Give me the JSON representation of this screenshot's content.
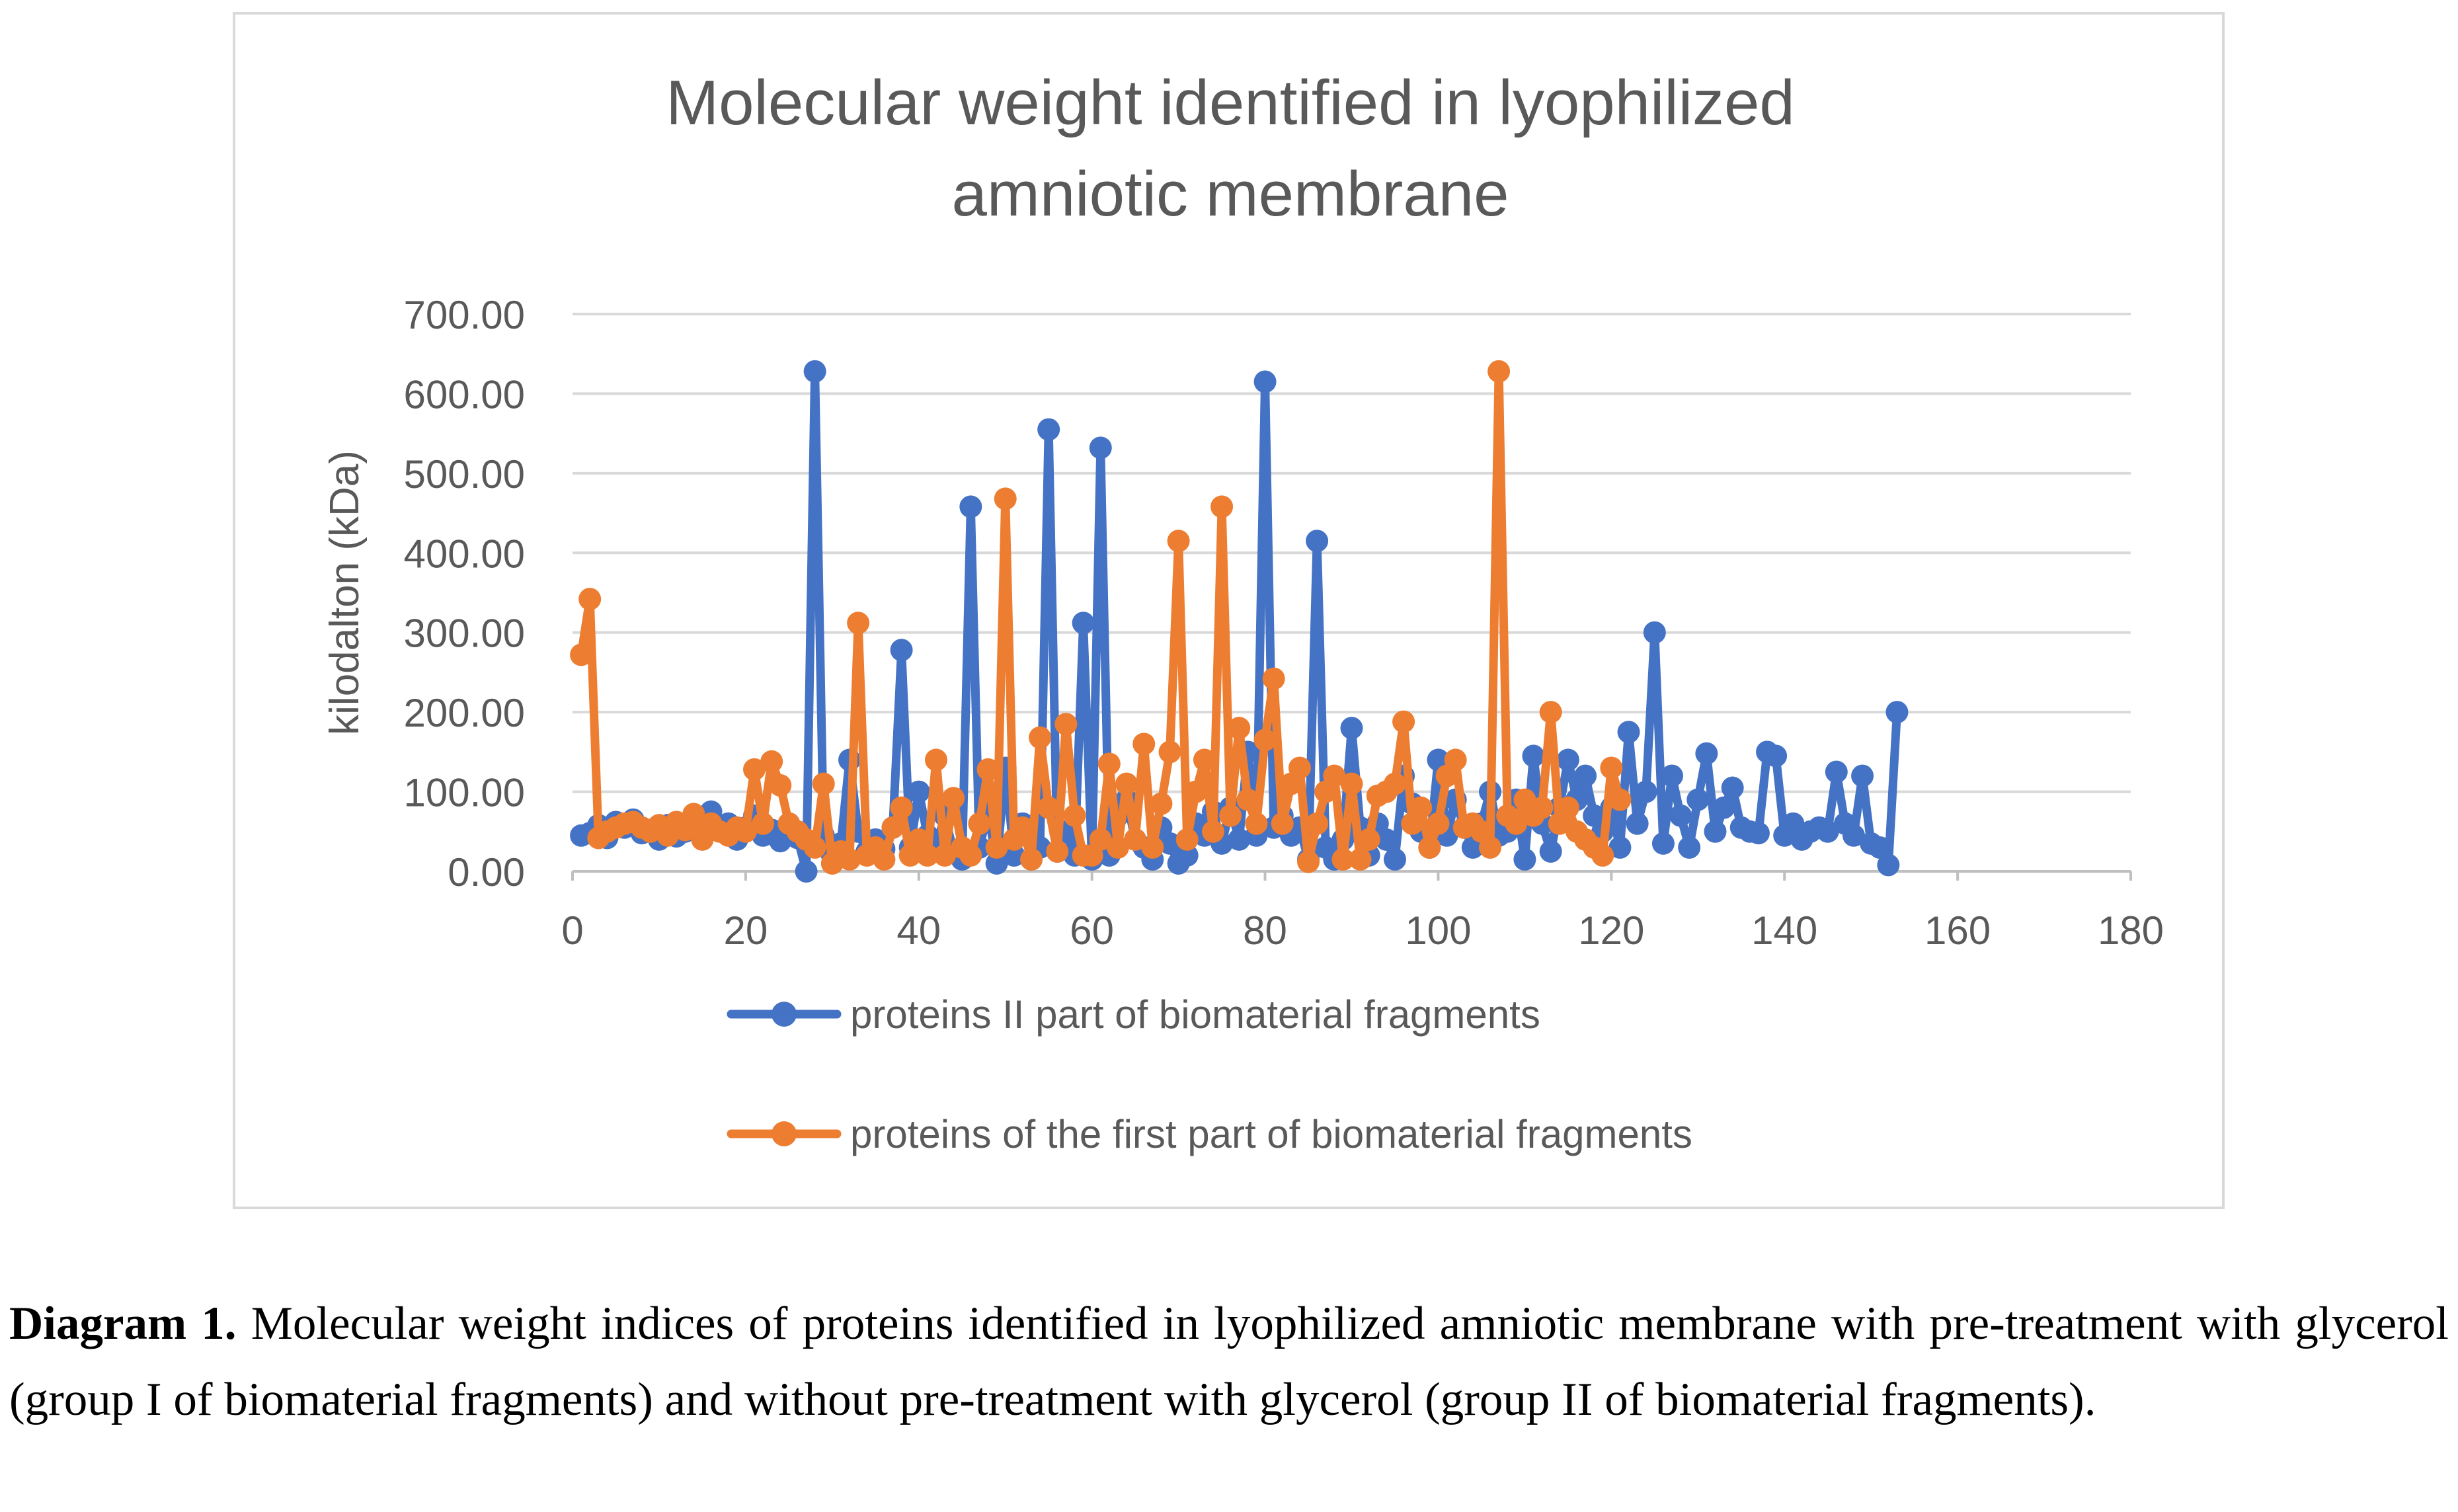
{
  "chart_data": {
    "type": "line",
    "title": "Molecular weight identified in lyophilized amniotic membrane",
    "title_lines": [
      "Molecular weight identified in lyophilized",
      "amniotic membrane"
    ],
    "xlabel": "",
    "ylabel": "kilodalton (kDa)",
    "xlim": [
      0,
      180
    ],
    "ylim": [
      0,
      700
    ],
    "x_ticks": [
      0,
      20,
      40,
      60,
      80,
      100,
      120,
      140,
      160,
      180
    ],
    "x_tick_labels": [
      "0",
      "20",
      "40",
      "60",
      "80",
      "100",
      "120",
      "140",
      "160",
      "180"
    ],
    "y_ticks": [
      0,
      100,
      200,
      300,
      400,
      500,
      600,
      700
    ],
    "y_tick_labels": [
      "0.00",
      "100.00",
      "200.00",
      "300.00",
      "400.00",
      "500.00",
      "600.00",
      "700.00"
    ],
    "grid": true,
    "legend_position": "bottom",
    "series": [
      {
        "name": "proteins II part of biomaterial fragments",
        "color": "#4472c4",
        "values": [
          [
            1,
            45
          ],
          [
            2,
            48
          ],
          [
            3,
            58
          ],
          [
            4,
            42
          ],
          [
            5,
            62
          ],
          [
            6,
            55
          ],
          [
            7,
            65
          ],
          [
            8,
            48
          ],
          [
            9,
            52
          ],
          [
            10,
            40
          ],
          [
            11,
            58
          ],
          [
            12,
            44
          ],
          [
            13,
            50
          ],
          [
            14,
            62
          ],
          [
            15,
            48
          ],
          [
            16,
            75
          ],
          [
            17,
            52
          ],
          [
            18,
            60
          ],
          [
            19,
            40
          ],
          [
            20,
            55
          ],
          [
            21,
            70
          ],
          [
            22,
            45
          ],
          [
            23,
            52
          ],
          [
            24,
            38
          ],
          [
            25,
            60
          ],
          [
            26,
            42
          ],
          [
            27,
            0
          ],
          [
            28,
            628
          ],
          [
            29,
            45
          ],
          [
            30,
            20
          ],
          [
            31,
            35
          ],
          [
            32,
            140
          ],
          [
            33,
            50
          ],
          [
            34,
            25
          ],
          [
            35,
            40
          ],
          [
            36,
            28
          ],
          [
            37,
            55
          ],
          [
            38,
            278
          ],
          [
            39,
            30
          ],
          [
            40,
            100
          ],
          [
            41,
            45
          ],
          [
            42,
            30
          ],
          [
            43,
            70
          ],
          [
            44,
            25
          ],
          [
            45,
            15
          ],
          [
            46,
            458
          ],
          [
            47,
            30
          ],
          [
            48,
            75
          ],
          [
            49,
            10
          ],
          [
            50,
            130
          ],
          [
            51,
            20
          ],
          [
            52,
            60
          ],
          [
            53,
            15
          ],
          [
            54,
            30
          ],
          [
            55,
            555
          ],
          [
            56,
            25
          ],
          [
            57,
            50
          ],
          [
            58,
            20
          ],
          [
            59,
            312
          ],
          [
            60,
            15
          ],
          [
            61,
            532
          ],
          [
            62,
            20
          ],
          [
            63,
            70
          ],
          [
            64,
            90
          ],
          [
            65,
            40
          ],
          [
            66,
            30
          ],
          [
            67,
            15
          ],
          [
            68,
            55
          ],
          [
            69,
            35
          ],
          [
            70,
            10
          ],
          [
            71,
            20
          ],
          [
            72,
            60
          ],
          [
            73,
            45
          ],
          [
            74,
            75
          ],
          [
            75,
            35
          ],
          [
            76,
            80
          ],
          [
            77,
            40
          ],
          [
            78,
            150
          ],
          [
            79,
            45
          ],
          [
            80,
            615
          ],
          [
            81,
            55
          ],
          [
            82,
            70
          ],
          [
            83,
            45
          ],
          [
            84,
            55
          ],
          [
            85,
            15
          ],
          [
            86,
            415
          ],
          [
            87,
            30
          ],
          [
            88,
            15
          ],
          [
            89,
            40
          ],
          [
            90,
            180
          ],
          [
            91,
            55
          ],
          [
            92,
            20
          ],
          [
            93,
            60
          ],
          [
            94,
            40
          ],
          [
            95,
            15
          ],
          [
            96,
            120
          ],
          [
            97,
            85
          ],
          [
            98,
            50
          ],
          [
            99,
            30
          ],
          [
            100,
            140
          ],
          [
            101,
            45
          ],
          [
            102,
            90
          ],
          [
            103,
            55
          ],
          [
            104,
            30
          ],
          [
            105,
            60
          ],
          [
            106,
            100
          ],
          [
            107,
            45
          ],
          [
            108,
            50
          ],
          [
            109,
            90
          ],
          [
            110,
            15
          ],
          [
            111,
            145
          ],
          [
            112,
            60
          ],
          [
            113,
            25
          ],
          [
            114,
            80
          ],
          [
            115,
            140
          ],
          [
            116,
            90
          ],
          [
            117,
            120
          ],
          [
            118,
            70
          ],
          [
            119,
            50
          ],
          [
            120,
            80
          ],
          [
            121,
            30
          ],
          [
            122,
            175
          ],
          [
            123,
            60
          ],
          [
            124,
            100
          ],
          [
            125,
            300
          ],
          [
            126,
            35
          ],
          [
            127,
            120
          ],
          [
            128,
            70
          ],
          [
            129,
            30
          ],
          [
            130,
            90
          ],
          [
            131,
            148
          ],
          [
            132,
            50
          ],
          [
            133,
            80
          ],
          [
            134,
            105
          ],
          [
            135,
            55
          ],
          [
            136,
            50
          ],
          [
            137,
            48
          ],
          [
            138,
            150
          ],
          [
            139,
            145
          ],
          [
            140,
            45
          ],
          [
            141,
            60
          ],
          [
            142,
            40
          ],
          [
            143,
            50
          ],
          [
            144,
            55
          ],
          [
            145,
            50
          ],
          [
            146,
            125
          ],
          [
            147,
            60
          ],
          [
            148,
            45
          ],
          [
            149,
            120
          ],
          [
            150,
            35
          ],
          [
            151,
            30
          ],
          [
            152,
            8
          ],
          [
            153,
            200
          ]
        ]
      },
      {
        "name": "proteins of the first part of biomaterial fragments",
        "color": "#ed7d31",
        "values": [
          [
            1,
            272
          ],
          [
            2,
            342
          ],
          [
            3,
            42
          ],
          [
            4,
            50
          ],
          [
            5,
            55
          ],
          [
            6,
            60
          ],
          [
            7,
            62
          ],
          [
            8,
            55
          ],
          [
            9,
            50
          ],
          [
            10,
            58
          ],
          [
            11,
            45
          ],
          [
            12,
            62
          ],
          [
            13,
            52
          ],
          [
            14,
            72
          ],
          [
            15,
            40
          ],
          [
            16,
            60
          ],
          [
            17,
            50
          ],
          [
            18,
            45
          ],
          [
            19,
            55
          ],
          [
            20,
            50
          ],
          [
            21,
            128
          ],
          [
            22,
            60
          ],
          [
            23,
            138
          ],
          [
            24,
            108
          ],
          [
            25,
            60
          ],
          [
            26,
            50
          ],
          [
            27,
            40
          ],
          [
            28,
            30
          ],
          [
            29,
            110
          ],
          [
            30,
            10
          ],
          [
            31,
            25
          ],
          [
            32,
            15
          ],
          [
            33,
            312
          ],
          [
            34,
            20
          ],
          [
            35,
            30
          ],
          [
            36,
            15
          ],
          [
            37,
            55
          ],
          [
            38,
            80
          ],
          [
            39,
            20
          ],
          [
            40,
            40
          ],
          [
            41,
            20
          ],
          [
            42,
            140
          ],
          [
            43,
            20
          ],
          [
            44,
            92
          ],
          [
            45,
            30
          ],
          [
            46,
            20
          ],
          [
            47,
            60
          ],
          [
            48,
            128
          ],
          [
            49,
            30
          ],
          [
            50,
            468
          ],
          [
            51,
            40
          ],
          [
            52,
            55
          ],
          [
            53,
            15
          ],
          [
            54,
            168
          ],
          [
            55,
            80
          ],
          [
            56,
            25
          ],
          [
            57,
            185
          ],
          [
            58,
            70
          ],
          [
            59,
            20
          ],
          [
            60,
            20
          ],
          [
            61,
            40
          ],
          [
            62,
            135
          ],
          [
            63,
            30
          ],
          [
            64,
            110
          ],
          [
            65,
            40
          ],
          [
            66,
            160
          ],
          [
            67,
            30
          ],
          [
            68,
            85
          ],
          [
            69,
            150
          ],
          [
            70,
            415
          ],
          [
            71,
            40
          ],
          [
            72,
            100
          ],
          [
            73,
            140
          ],
          [
            74,
            50
          ],
          [
            75,
            458
          ],
          [
            76,
            70
          ],
          [
            77,
            180
          ],
          [
            78,
            90
          ],
          [
            79,
            60
          ],
          [
            80,
            165
          ],
          [
            81,
            242
          ],
          [
            82,
            60
          ],
          [
            83,
            110
          ],
          [
            84,
            130
          ],
          [
            85,
            12
          ],
          [
            86,
            60
          ],
          [
            87,
            100
          ],
          [
            88,
            120
          ],
          [
            89,
            15
          ],
          [
            90,
            110
          ],
          [
            91,
            15
          ],
          [
            92,
            40
          ],
          [
            93,
            95
          ],
          [
            94,
            100
          ],
          [
            95,
            110
          ],
          [
            96,
            188
          ],
          [
            97,
            60
          ],
          [
            98,
            80
          ],
          [
            99,
            30
          ],
          [
            100,
            60
          ],
          [
            101,
            120
          ],
          [
            102,
            140
          ],
          [
            103,
            55
          ],
          [
            104,
            60
          ],
          [
            105,
            50
          ],
          [
            106,
            30
          ],
          [
            107,
            628
          ],
          [
            108,
            70
          ],
          [
            109,
            60
          ],
          [
            110,
            90
          ],
          [
            111,
            70
          ],
          [
            112,
            80
          ],
          [
            113,
            200
          ],
          [
            114,
            60
          ],
          [
            115,
            80
          ],
          [
            116,
            50
          ],
          [
            117,
            40
          ],
          [
            118,
            30
          ],
          [
            119,
            20
          ],
          [
            120,
            130
          ],
          [
            121,
            90
          ]
        ]
      }
    ]
  },
  "caption": {
    "label": "Diagram 1.",
    "text": " Molecular weight indices of proteins identified in lyophilized amniotic membrane with pre-treatment with glycerol (group I of biomaterial fragments) and without pre-treatment with glycerol (group II of biomaterial fragments)."
  }
}
